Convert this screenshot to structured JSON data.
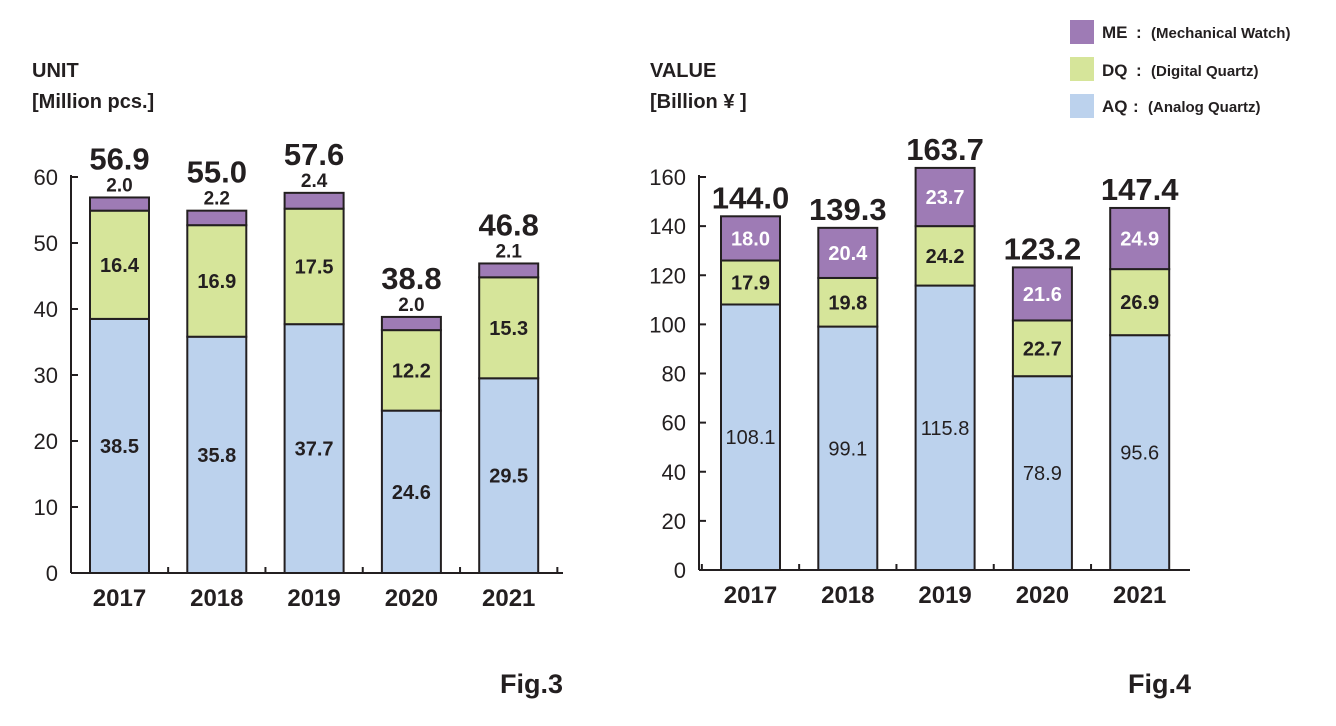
{
  "legend": [
    {
      "key": "ME",
      "desc": "(Mechanical Watch)",
      "color": "#9e7bb5"
    },
    {
      "key": "DQ",
      "desc": "(Digital Quartz)",
      "color": "#d6e59a"
    },
    {
      "key": "AQ",
      "desc": "(Analog Quartz)",
      "color": "#bcd2ed"
    }
  ],
  "chart_data": [
    {
      "type": "bar",
      "stacked": true,
      "title_line1": "UNIT",
      "title_line2": "[Million pcs.]",
      "caption": "Fig.3",
      "categories": [
        "2017",
        "2018",
        "2019",
        "2020",
        "2021"
      ],
      "ylim": [
        0,
        60
      ],
      "yticks": [
        0,
        10,
        20,
        30,
        40,
        50,
        60
      ],
      "series": [
        {
          "name": "AQ",
          "values": [
            38.5,
            35.8,
            37.7,
            24.6,
            29.5
          ]
        },
        {
          "name": "DQ",
          "values": [
            16.4,
            16.9,
            17.5,
            12.2,
            15.3
          ]
        },
        {
          "name": "ME",
          "values": [
            2.0,
            2.2,
            2.4,
            2.0,
            2.1
          ]
        }
      ],
      "series_labels": [
        [
          "38.5",
          "35.8",
          "37.7",
          "24.6",
          "29.5"
        ],
        [
          "16.4",
          "16.9",
          "17.5",
          "12.2",
          "15.3"
        ],
        [
          "2.0",
          "2.2",
          "2.4",
          "2.0",
          "2.1"
        ]
      ],
      "totals": [
        "56.9",
        "55.0",
        "57.6",
        "38.8",
        "46.8"
      ]
    },
    {
      "type": "bar",
      "stacked": true,
      "title_line1": "VALUE",
      "title_line2": "[Billion ¥ ]",
      "caption": "Fig.4",
      "categories": [
        "2017",
        "2018",
        "2019",
        "2020",
        "2021"
      ],
      "ylim": [
        0,
        160
      ],
      "yticks": [
        0,
        20,
        40,
        60,
        80,
        100,
        120,
        140,
        160
      ],
      "series": [
        {
          "name": "AQ",
          "values": [
            108.1,
            99.1,
            115.8,
            78.9,
            95.6
          ]
        },
        {
          "name": "DQ",
          "values": [
            17.9,
            19.8,
            24.2,
            22.7,
            26.9
          ]
        },
        {
          "name": "ME",
          "values": [
            18.0,
            20.4,
            23.7,
            21.6,
            24.9
          ]
        }
      ],
      "series_labels": [
        [
          "108.1",
          "99.1",
          "115.8",
          "78.9",
          "95.6"
        ],
        [
          "17.9",
          "19.8",
          "24.2",
          "22.7",
          "26.9"
        ],
        [
          "18.0",
          "20.4",
          "23.7",
          "21.6",
          "24.9"
        ]
      ],
      "totals": [
        "144.0",
        "139.3",
        "163.7",
        "123.2",
        "147.4"
      ]
    }
  ]
}
